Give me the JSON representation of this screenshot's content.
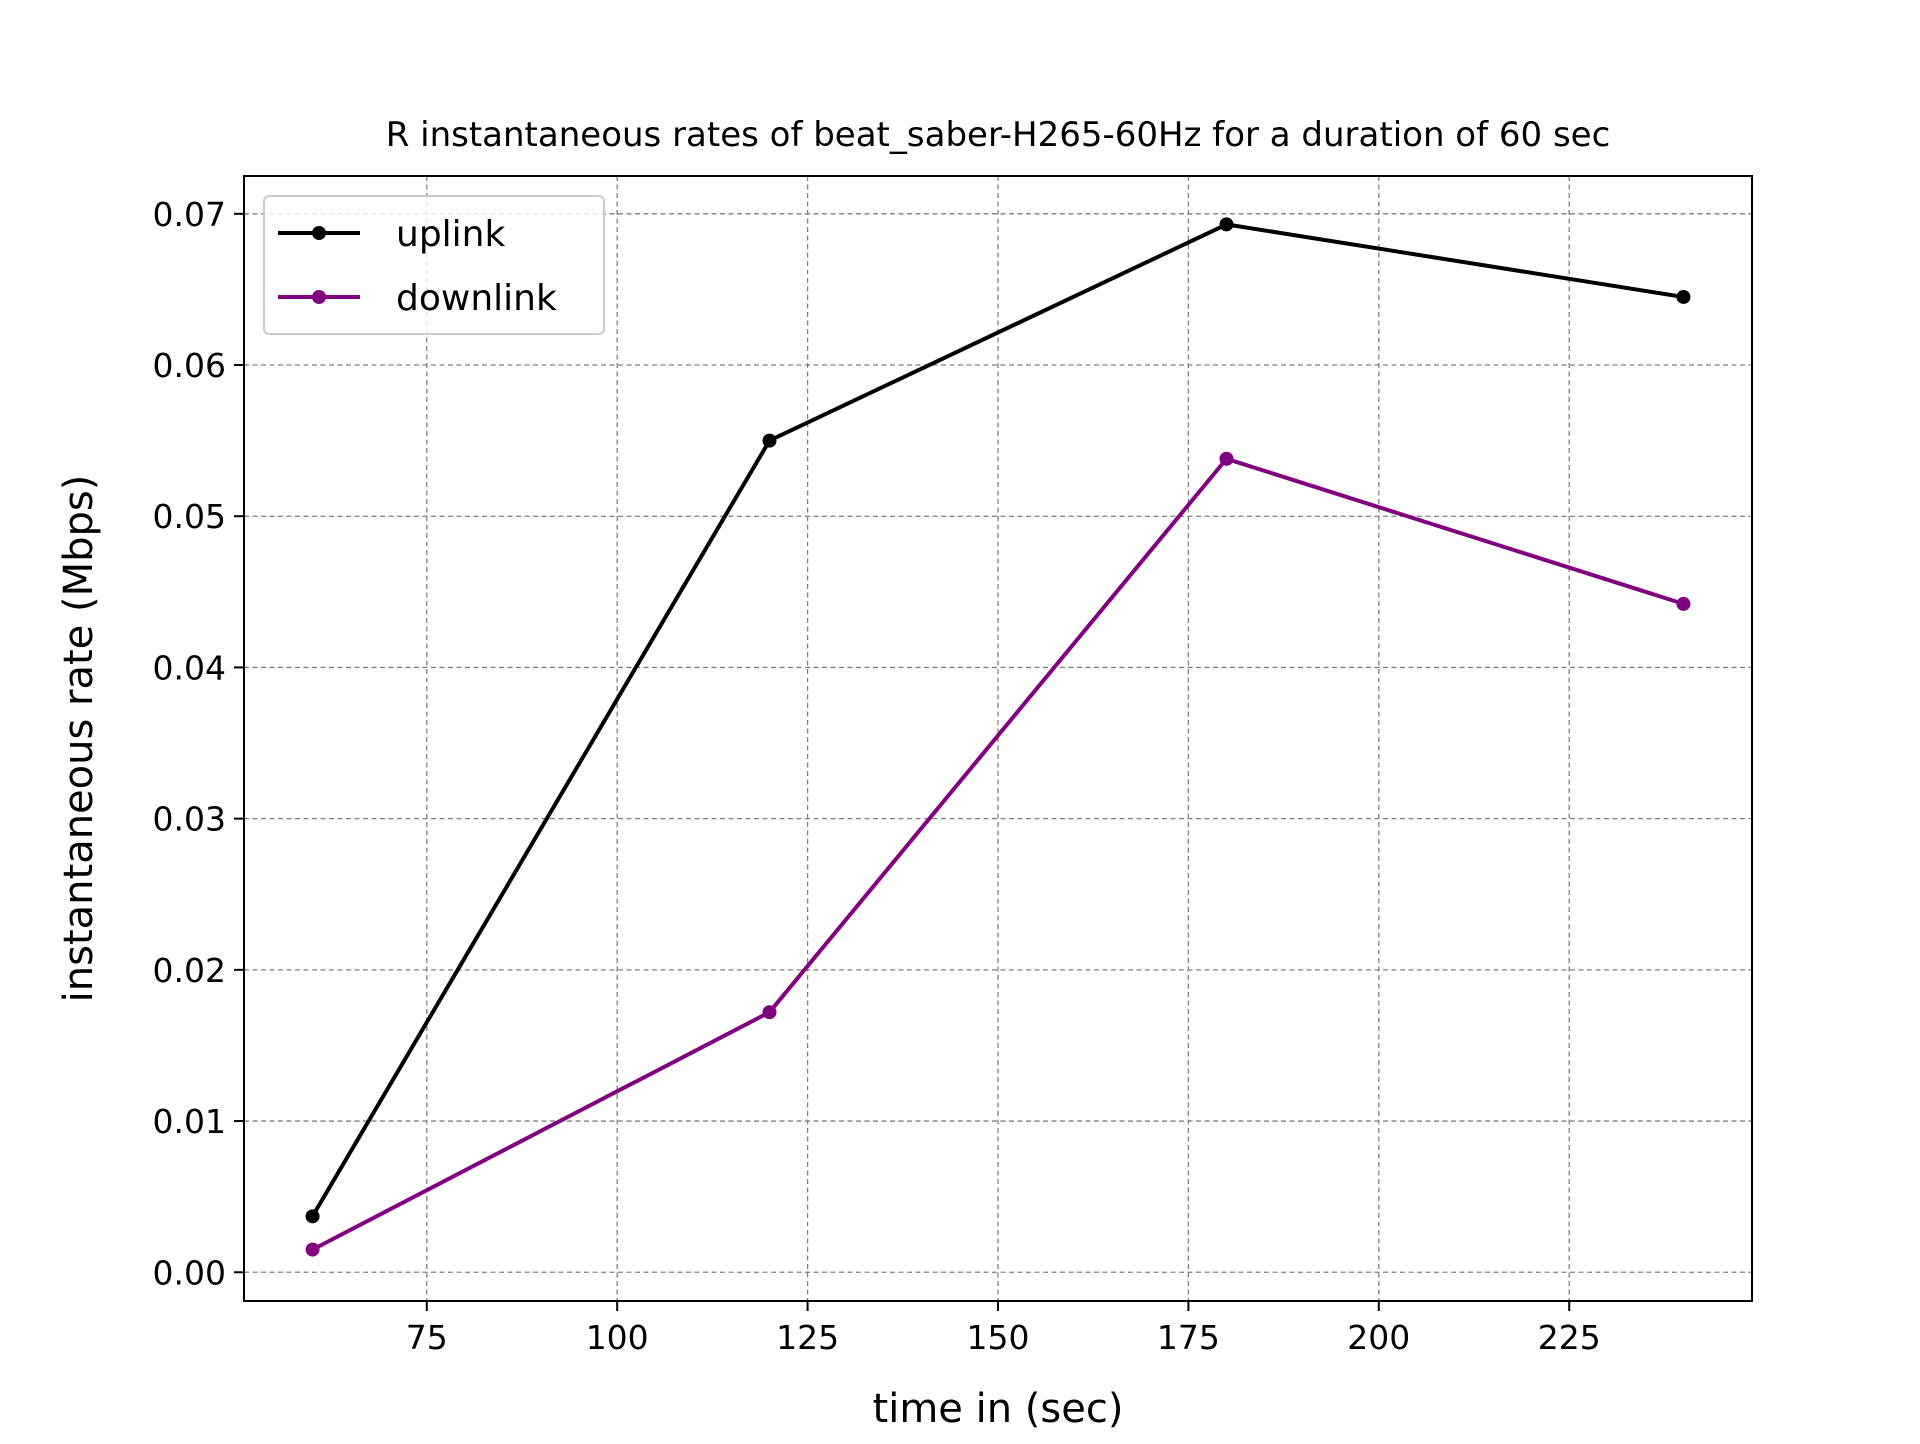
{
  "chart_data": {
    "type": "line",
    "title": "R instantaneous rates of beat_saber-H265-60Hz for a duration of 60 sec",
    "xlabel": "time in (sec)",
    "ylabel": "instantaneous rate (Mbps)",
    "x": [
      60,
      120,
      180,
      240
    ],
    "xlim": [
      51,
      249
    ],
    "ylim": [
      -0.0019,
      0.0725
    ],
    "xticks": [
      75,
      100,
      125,
      150,
      175,
      200,
      225
    ],
    "xtick_labels": [
      "75",
      "100",
      "125",
      "150",
      "175",
      "200",
      "225"
    ],
    "yticks": [
      0.0,
      0.01,
      0.02,
      0.03,
      0.04,
      0.05,
      0.06,
      0.07
    ],
    "ytick_labels": [
      "0.00",
      "0.01",
      "0.02",
      "0.03",
      "0.04",
      "0.05",
      "0.06",
      "0.07"
    ],
    "grid": true,
    "legend_position": "top-left",
    "series": [
      {
        "name": "uplink",
        "color": "#000000",
        "values": [
          0.0037,
          0.055,
          0.0693,
          0.0645
        ]
      },
      {
        "name": "downlink",
        "color": "#800080",
        "values": [
          0.0015,
          0.0172,
          0.0538,
          0.0442
        ]
      }
    ]
  }
}
